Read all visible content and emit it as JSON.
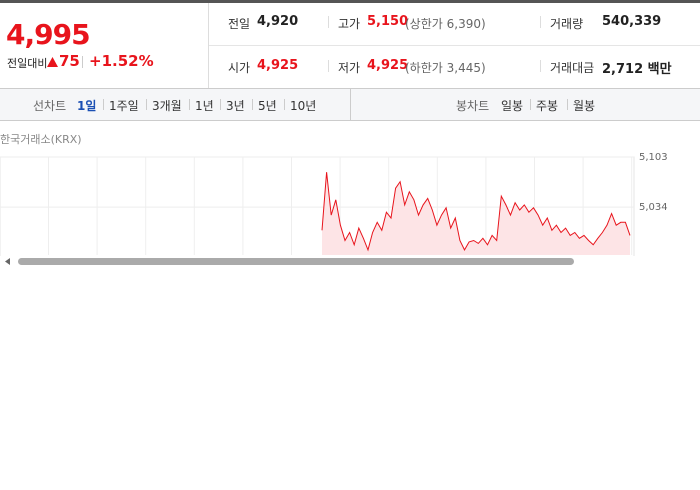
{
  "quote": {
    "price": "4,995",
    "change_label": "전일대비",
    "change": "75",
    "change_rate": "+1.52%",
    "stats": [
      [
        {
          "label": "전일",
          "value": "4,920"
        },
        {
          "label": "고가",
          "value": "5,150",
          "note": "(상한가 6,390)"
        },
        {
          "label": "거래량",
          "value": "540,339"
        }
      ],
      [
        {
          "label": "시가",
          "value": "4,925"
        },
        {
          "label": "저가",
          "value": "4,925",
          "note": "(하한가 3,445)"
        },
        {
          "label": "거래대금",
          "value": "2,712 백만"
        }
      ]
    ]
  },
  "tabs": {
    "line_label": "선차트",
    "line_tabs": [
      "1일",
      "1주일",
      "3개월",
      "1년",
      "3년",
      "5년",
      "10년"
    ],
    "selected": 0,
    "candle_label": "봉차트",
    "candle_tabs": [
      "일봉",
      "주봉",
      "월봉"
    ]
  },
  "chart_data": {
    "type": "line",
    "source": "한국거래소(KRX)",
    "color": "#e8141c",
    "fill": "#fde4e6",
    "values": [
      5002,
      5082,
      5023,
      5044,
      5009,
      4988,
      4999,
      4982,
      5005,
      4991,
      4975,
      4999,
      5013,
      5002,
      5027,
      5019,
      5060,
      5069,
      5037,
      5055,
      5044,
      5023,
      5037,
      5046,
      5030,
      5009,
      5023,
      5033,
      5005,
      5019,
      4988,
      4975,
      4986,
      4988,
      4984,
      4991,
      4982,
      4995,
      4988,
      5049,
      5037,
      5023,
      5040,
      5030,
      5037,
      5027,
      5033,
      5023,
      5009,
      5019,
      5002,
      5009,
      4999,
      5005,
      4995,
      4999,
      4991,
      4995,
      4988,
      4982,
      4991,
      4999,
      5009,
      5025,
      5009,
      5013,
      5013,
      4995
    ],
    "ylim": [
      4968,
      5103
    ],
    "yticks": [
      {
        "value": 5103,
        "label": "5,103"
      },
      {
        "value": 5034,
        "label": "5,034"
      }
    ],
    "grid": true
  }
}
